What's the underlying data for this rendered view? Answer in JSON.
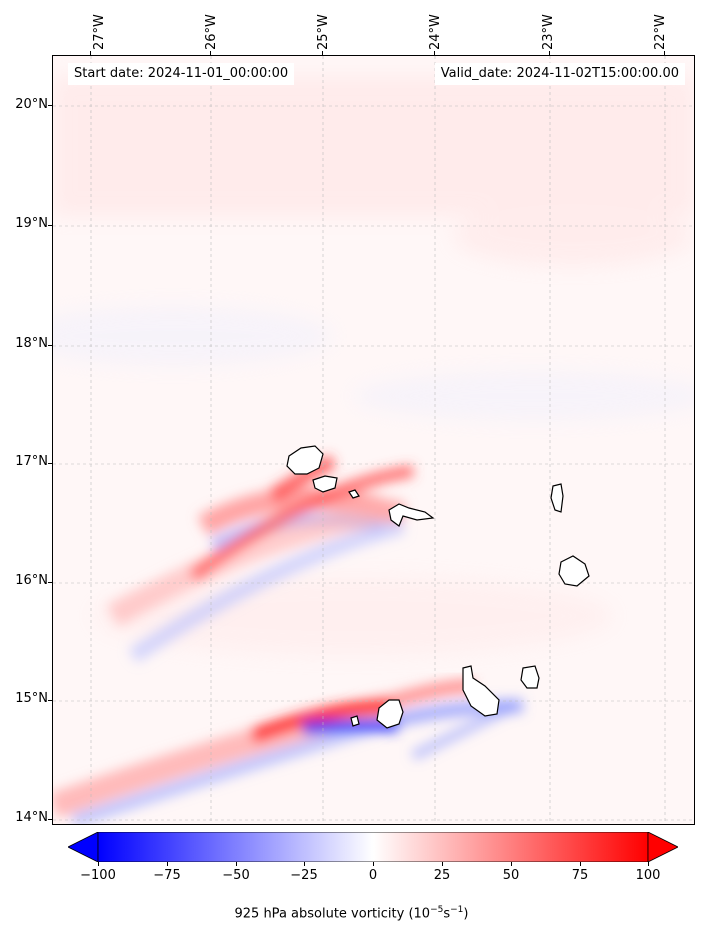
{
  "map": {
    "start_label": "Start date: 2024-11-01_00:00:00",
    "valid_label": "Valid_date: 2024-11-02T15:00:00.00",
    "lat_labels": [
      "20°N",
      "19°N",
      "18°N",
      "17°N",
      "16°N",
      "15°N",
      "14°N"
    ],
    "lon_labels": [
      "27°W",
      "26°W",
      "25°W",
      "24°W",
      "23°W",
      "22°W"
    ],
    "extent": {
      "lon_min": -27.3,
      "lon_max": -21.7,
      "lat_min": 13.95,
      "lat_max": 20.42
    }
  },
  "colorbar": {
    "title_text": "925 hPa absolute vorticity (10",
    "title_exp1": "−5",
    "title_mid": "s",
    "title_exp2": "−1",
    "title_end": ")",
    "tick_labels": [
      "−100",
      "−75",
      "−50",
      "−25",
      "0",
      "25",
      "50",
      "75",
      "100"
    ],
    "range": [
      -100,
      100
    ],
    "colors": {
      "negative": "#0000ff",
      "zero": "#ffffff",
      "positive": "#ff0000"
    }
  }
}
